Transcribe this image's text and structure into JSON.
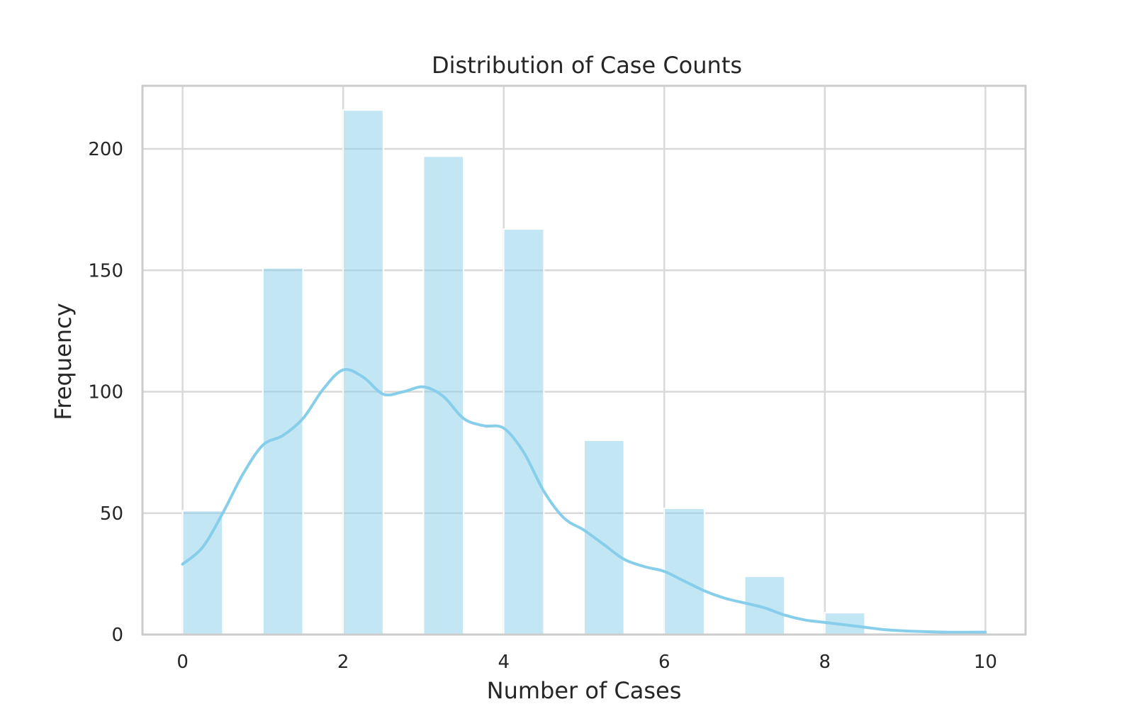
{
  "chart_data": {
    "type": "bar",
    "title": "Distribution of Case Counts",
    "xlabel": "Number of Cases",
    "ylabel": "Frequency",
    "xlim": [
      -0.5,
      10.5
    ],
    "ylim": [
      0,
      226
    ],
    "xticks": [
      0,
      2,
      4,
      6,
      8,
      10
    ],
    "yticks": [
      0,
      50,
      100,
      150,
      200
    ],
    "grid": true,
    "bins": [
      {
        "x0": 0,
        "x1": 0.5,
        "count": 51
      },
      {
        "x0": 1,
        "x1": 1.5,
        "count": 151
      },
      {
        "x0": 2,
        "x1": 2.5,
        "count": 216
      },
      {
        "x0": 3,
        "x1": 3.5,
        "count": 197
      },
      {
        "x0": 4,
        "x1": 4.5,
        "count": 167
      },
      {
        "x0": 5,
        "x1": 5.5,
        "count": 80
      },
      {
        "x0": 6,
        "x1": 6.5,
        "count": 52
      },
      {
        "x0": 7,
        "x1": 7.5,
        "count": 24
      },
      {
        "x0": 8,
        "x1": 8.5,
        "count": 9
      }
    ],
    "kde": {
      "x": [
        0,
        0.25,
        0.5,
        0.75,
        1.0,
        1.25,
        1.5,
        1.75,
        2.0,
        2.25,
        2.5,
        2.75,
        3.0,
        3.25,
        3.5,
        3.75,
        4.0,
        4.25,
        4.5,
        4.75,
        5.0,
        5.25,
        5.5,
        5.75,
        6.0,
        6.25,
        6.5,
        6.75,
        7.0,
        7.25,
        7.5,
        7.75,
        8.0,
        8.25,
        8.5,
        8.75,
        9.0,
        9.5,
        10.0
      ],
      "y": [
        29,
        36,
        50,
        66,
        78,
        82,
        89,
        101,
        109,
        106,
        99,
        100,
        102,
        98,
        89,
        86,
        85,
        75,
        59,
        48,
        43,
        37,
        31,
        28,
        26,
        22,
        18,
        15,
        13,
        11,
        8,
        6,
        5,
        4,
        3,
        2,
        1.5,
        1,
        1
      ]
    },
    "colors": {
      "bar": "#87ceeb",
      "kde": "#87ceeb",
      "grid": "#d9d9d9",
      "frame": "#cccccc"
    }
  }
}
